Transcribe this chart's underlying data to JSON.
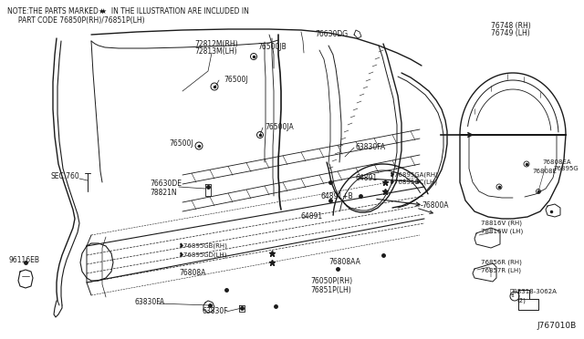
{
  "bg_color": "#ffffff",
  "line_color": "#1a1a1a",
  "fig_width": 6.4,
  "fig_height": 3.72,
  "dpi": 100,
  "note_line1": "NOTE:THE PARTS MARKED ★  IN THE ILLUSTRATION ARE INCLUDED IN",
  "note_line2": "     PART CODE 76850P(RH)/76851P(LH)",
  "diagram_id": "J767010B"
}
